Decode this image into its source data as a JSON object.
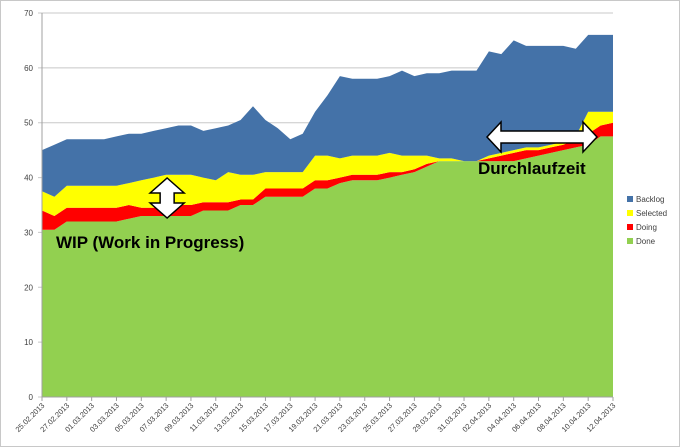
{
  "chart_data": {
    "type": "area",
    "stacked": true,
    "title": "",
    "xlabel": "",
    "ylabel": "",
    "ylim": [
      0,
      70
    ],
    "yticks": [
      0,
      10,
      20,
      30,
      40,
      50,
      60,
      70
    ],
    "grid": "horizontal",
    "legend_position": "right",
    "x": [
      "25.02.2013",
      "26.02.2013",
      "27.02.2013",
      "28.02.2013",
      "01.03.2013",
      "02.03.2013",
      "03.03.2013",
      "04.03.2013",
      "05.03.2013",
      "06.03.2013",
      "07.03.2013",
      "08.03.2013",
      "09.03.2013",
      "10.03.2013",
      "11.03.2013",
      "12.03.2013",
      "13.03.2013",
      "14.03.2013",
      "15.03.2013",
      "16.03.2013",
      "17.03.2013",
      "18.03.2013",
      "19.03.2013",
      "20.03.2013",
      "21.03.2013",
      "22.03.2013",
      "23.03.2013",
      "24.03.2013",
      "25.03.2013",
      "26.03.2013",
      "27.03.2013",
      "28.03.2013",
      "29.03.2013",
      "30.03.2013",
      "31.03.2013",
      "01.04.2013",
      "02.04.2013",
      "03.04.2013",
      "04.04.2013",
      "05.04.2013",
      "06.04.2013",
      "07.04.2013",
      "08.04.2013",
      "09.04.2013",
      "10.04.2013",
      "11.04.2013",
      "12.04.2013"
    ],
    "xtick_labels": [
      "25.02.2013",
      "27.02.2013",
      "01.03.2013",
      "03.03.2013",
      "05.03.2013",
      "07.03.2013",
      "09.03.2013",
      "11.03.2013",
      "13.03.2013",
      "15.03.2013",
      "17.03.2013",
      "19.03.2013",
      "21.03.2013",
      "23.03.2013",
      "25.03.2013",
      "27.03.2013",
      "29.03.2013",
      "31.03.2013",
      "02.04.2013",
      "04.04.2013",
      "06.04.2013",
      "08.04.2013",
      "10.04.2013",
      "12.04.2013"
    ],
    "series": [
      {
        "name": "Done",
        "color": "#92d050",
        "values": [
          30.5,
          30.5,
          32,
          32,
          32,
          32,
          32,
          32.5,
          33,
          33,
          33,
          33,
          33,
          34,
          34,
          34,
          35,
          35,
          36.5,
          36.5,
          36.5,
          36.5,
          38,
          38,
          39,
          39.5,
          39.5,
          39.5,
          40,
          40.5,
          41,
          42,
          43,
          43,
          43,
          43,
          43,
          43,
          43,
          43.5,
          44,
          44.5,
          45,
          45.5,
          46,
          47.5,
          47.5
        ]
      },
      {
        "name": "Doing",
        "color": "#ff0000",
        "values": [
          3.5,
          2.5,
          2.5,
          2.5,
          2.5,
          2.5,
          2.5,
          2.5,
          1.5,
          1.5,
          2,
          2,
          2,
          1.5,
          1.5,
          1.5,
          1,
          1,
          1.5,
          1.5,
          1.5,
          1.5,
          1.5,
          1.5,
          1,
          1,
          1,
          1,
          1,
          0.5,
          0.5,
          0.5,
          0,
          0,
          0,
          0,
          0.5,
          1,
          1.5,
          1.5,
          1,
          1,
          1,
          1.5,
          2,
          2,
          2.5
        ]
      },
      {
        "name": "Selected",
        "color": "#ffff00",
        "values": [
          3.5,
          3.5,
          4,
          4,
          4,
          4,
          4,
          4,
          5,
          5.5,
          5.5,
          5.5,
          5.5,
          4.5,
          4,
          5.5,
          4.5,
          4.5,
          3,
          3,
          3,
          3,
          4.5,
          4.5,
          3.5,
          3.5,
          3.5,
          3.5,
          3.5,
          3,
          2.5,
          1.5,
          0.5,
          0.5,
          0,
          0,
          0.5,
          0.5,
          0.5,
          0.5,
          0.5,
          0.5,
          0.5,
          0.5,
          4,
          2.5,
          2
        ]
      },
      {
        "name": "Backlog",
        "color": "#4472a8",
        "values": [
          7.5,
          9.5,
          8.5,
          8.5,
          8.5,
          8.5,
          9,
          9,
          8.5,
          8.5,
          8.5,
          9,
          9,
          8.5,
          9.5,
          8.5,
          10,
          12.5,
          9.5,
          8,
          6,
          7,
          8,
          11,
          15,
          14,
          14,
          14,
          14,
          15.5,
          14.5,
          15,
          15.5,
          16,
          16.5,
          16.5,
          19,
          18,
          20,
          18.5,
          18.5,
          18,
          17.5,
          16,
          14,
          14,
          14
        ]
      }
    ],
    "legend": [
      "Backlog",
      "Selected",
      "Doing",
      "Done"
    ],
    "annotations": [
      {
        "text": "WIP (Work in Progress)",
        "type": "vertical double arrow",
        "at": "07.03.2013"
      },
      {
        "text": "Durchlaufzeit",
        "type": "horizontal double arrow",
        "from": "02.04.2013",
        "to": "12.04.2013"
      }
    ]
  }
}
